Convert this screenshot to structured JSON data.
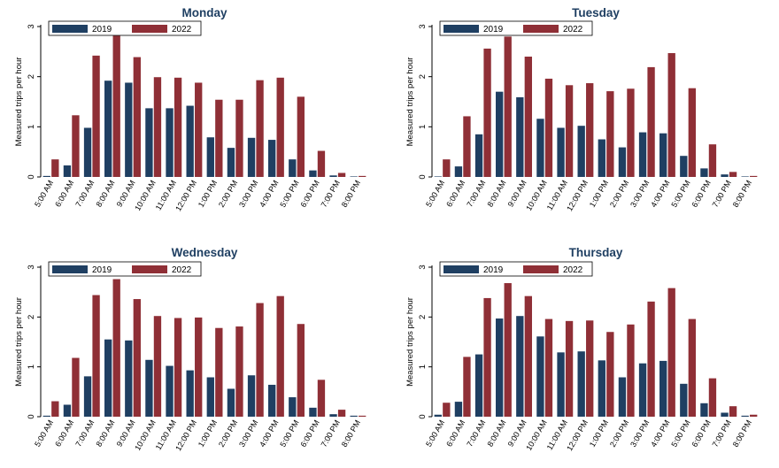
{
  "colors": {
    "series_2019": "#1f3f62",
    "series_2022": "#8f2f36",
    "axis": "#000000",
    "background": "#ffffff"
  },
  "chart_data": [
    {
      "type": "bar",
      "title": "Monday",
      "ylabel": "Measured trips per hour",
      "ylim": [
        0,
        3
      ],
      "yticks": [
        0,
        1,
        2,
        3
      ],
      "legend": "top-left",
      "grid": false,
      "categories": [
        "5:00 AM",
        "6:00 AM",
        "7:00 AM",
        "8:00 AM",
        "9:00 AM",
        "10:00 AM",
        "11:00 AM",
        "12:00 PM",
        "1:00 PM",
        "2:00 PM",
        "3:00 PM",
        "4:00 PM",
        "5:00 PM",
        "6:00 PM",
        "7:00 PM",
        "8:00 PM"
      ],
      "series": [
        {
          "name": "2019",
          "values": [
            0.02,
            0.23,
            0.98,
            1.92,
            1.88,
            1.37,
            1.37,
            1.42,
            0.79,
            0.58,
            0.78,
            0.74,
            0.35,
            0.13,
            0.03,
            0.01
          ]
        },
        {
          "name": "2022",
          "values": [
            0.35,
            1.23,
            2.42,
            2.82,
            2.39,
            1.99,
            1.98,
            1.88,
            1.54,
            1.54,
            1.93,
            1.98,
            1.6,
            0.52,
            0.08,
            0.02
          ]
        }
      ]
    },
    {
      "type": "bar",
      "title": "Tuesday",
      "ylabel": "Measured trips per hour",
      "ylim": [
        0,
        3
      ],
      "yticks": [
        0,
        1,
        2,
        3
      ],
      "legend": "top-left",
      "grid": false,
      "categories": [
        "5:00 AM",
        "6:00 AM",
        "7:00 AM",
        "8:00 AM",
        "9:00 AM",
        "10:00 AM",
        "11:00 AM",
        "12:00 PM",
        "1:00 PM",
        "2:00 PM",
        "3:00 PM",
        "4:00 PM",
        "5:00 PM",
        "6:00 PM",
        "7:00 PM",
        "8:00 PM"
      ],
      "series": [
        {
          "name": "2019",
          "values": [
            0.01,
            0.21,
            0.85,
            1.7,
            1.59,
            1.16,
            0.98,
            1.02,
            0.75,
            0.59,
            0.89,
            0.87,
            0.42,
            0.17,
            0.05,
            0.01
          ]
        },
        {
          "name": "2022",
          "values": [
            0.35,
            1.21,
            2.56,
            2.8,
            2.4,
            1.96,
            1.83,
            1.87,
            1.71,
            1.76,
            2.19,
            2.47,
            1.77,
            0.65,
            0.1,
            0.02
          ]
        }
      ]
    },
    {
      "type": "bar",
      "title": "Wednesday",
      "ylabel": "Measured trips per hour",
      "ylim": [
        0,
        3
      ],
      "yticks": [
        0,
        1,
        2,
        3
      ],
      "legend": "top-left",
      "grid": false,
      "categories": [
        "5:00 AM",
        "6:00 AM",
        "7:00 AM",
        "8:00 AM",
        "9:00 AM",
        "10:00 AM",
        "11:00 AM",
        "12:00 PM",
        "1:00 PM",
        "2:00 PM",
        "3:00 PM",
        "4:00 PM",
        "5:00 PM",
        "6:00 PM",
        "7:00 PM",
        "8:00 PM"
      ],
      "series": [
        {
          "name": "2019",
          "values": [
            0.02,
            0.24,
            0.81,
            1.55,
            1.53,
            1.14,
            1.02,
            0.93,
            0.79,
            0.56,
            0.83,
            0.64,
            0.39,
            0.18,
            0.05,
            0.02
          ]
        },
        {
          "name": "2022",
          "values": [
            0.31,
            1.18,
            2.44,
            2.76,
            2.36,
            2.02,
            1.98,
            1.99,
            1.78,
            1.81,
            2.28,
            2.42,
            1.86,
            0.74,
            0.14,
            0.02
          ]
        }
      ]
    },
    {
      "type": "bar",
      "title": "Thursday",
      "ylabel": "Measured trips per hour",
      "ylim": [
        0,
        3
      ],
      "yticks": [
        0,
        1,
        2,
        3
      ],
      "legend": "top-left",
      "grid": false,
      "categories": [
        "5:00 AM",
        "6:00 AM",
        "7:00 AM",
        "8:00 AM",
        "9:00 AM",
        "10:00 AM",
        "11:00 AM",
        "12:00 PM",
        "1:00 PM",
        "2:00 PM",
        "3:00 PM",
        "4:00 PM",
        "5:00 PM",
        "6:00 PM",
        "7:00 PM",
        "8:00 PM"
      ],
      "series": [
        {
          "name": "2019",
          "values": [
            0.04,
            0.3,
            1.25,
            1.97,
            2.02,
            1.61,
            1.29,
            1.31,
            1.13,
            0.79,
            1.07,
            1.12,
            0.66,
            0.27,
            0.08,
            0.02
          ]
        },
        {
          "name": "2022",
          "values": [
            0.28,
            1.2,
            2.38,
            2.68,
            2.42,
            1.96,
            1.92,
            1.93,
            1.7,
            1.85,
            2.31,
            2.58,
            1.96,
            0.77,
            0.21,
            0.04
          ]
        }
      ]
    }
  ]
}
